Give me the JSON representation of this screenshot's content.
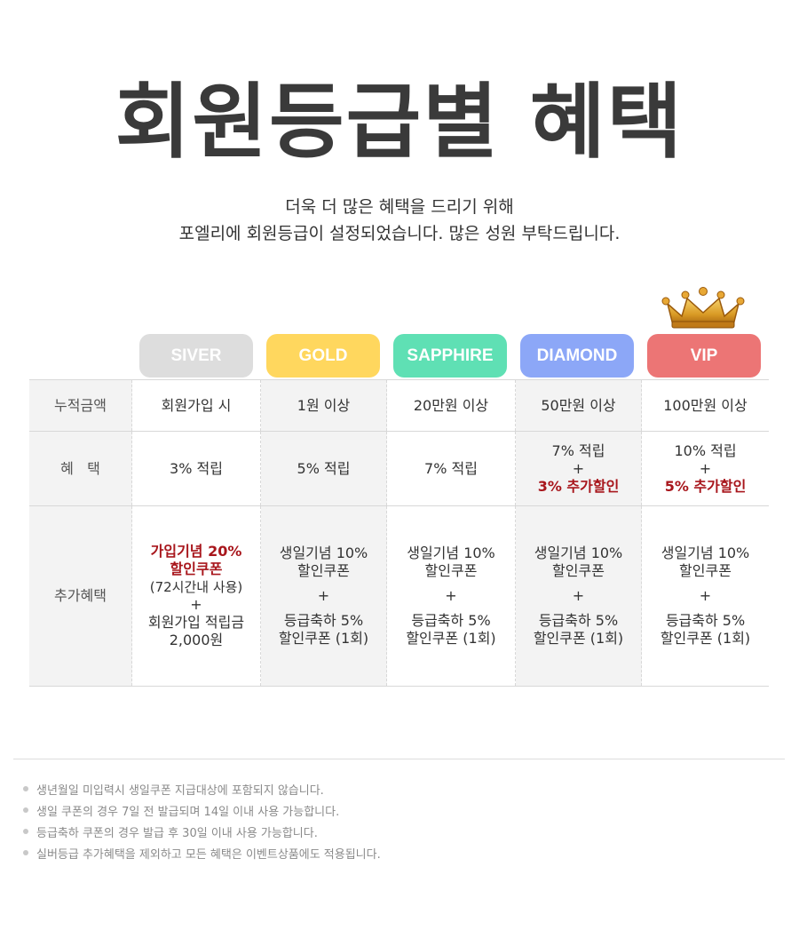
{
  "title": "회원등급별 혜택",
  "subtitle": {
    "line1": "더욱 더 많은 혜택을 드리기 위해",
    "line2": "포엘리에 회원등급이 설정되었습니다. 많은 성원 부탁드립니다."
  },
  "icons": {
    "crown": "crown-icon"
  },
  "tiers": [
    {
      "label": "SIVER",
      "color": "#dddddd"
    },
    {
      "label": "GOLD",
      "color": "#ffd75e"
    },
    {
      "label": "SAPPHIRE",
      "color": "#5fe0b4"
    },
    {
      "label": "DIAMOND",
      "color": "#8ca7f7"
    },
    {
      "label": "VIP",
      "color": "#ec7575"
    }
  ],
  "table": {
    "row_labels": {
      "accumulated": "누적금액",
      "benefit": "혜   택",
      "extra": "추가혜택"
    },
    "accumulated": [
      "회원가입 시",
      "1원 이상",
      "20만원 이상",
      "50만원 이상",
      "100만원 이상"
    ],
    "benefit": {
      "siver": "3% 적립",
      "gold": "5% 적립",
      "sapphire": "7% 적립",
      "diamond": {
        "line1": "7% 적립",
        "plus": "+",
        "highlight": "3% 추가할인"
      },
      "vip": {
        "line1": "10% 적립",
        "plus": "+",
        "highlight": "5% 추가할인"
      }
    },
    "extra": {
      "siver": {
        "highlight1": "가입기념 20%",
        "highlight2": "할인쿠폰",
        "note": "(72시간내 사용)",
        "plus": "+",
        "line1": "회원가입 적립금",
        "line2": "2,000원"
      },
      "others": {
        "line1": "생일기념 10%",
        "line2": "할인쿠폰",
        "plus": "+",
        "line3": "등급축하 5%",
        "line4": "할인쿠폰 (1회)"
      }
    }
  },
  "notes": [
    "생년월일 미입력시 생일쿠폰 지급대상에 포함되지 않습니다.",
    "생일 쿠폰의 경우 7일 전 발급되며 14일 이내 사용 가능합니다.",
    "등급축하 쿠폰의 경우 발급 후 30일 이내 사용 가능합니다.",
    "실버등급 추가혜택을 제외하고 모든 혜택은 이벤트상품에도 적용됩니다."
  ]
}
